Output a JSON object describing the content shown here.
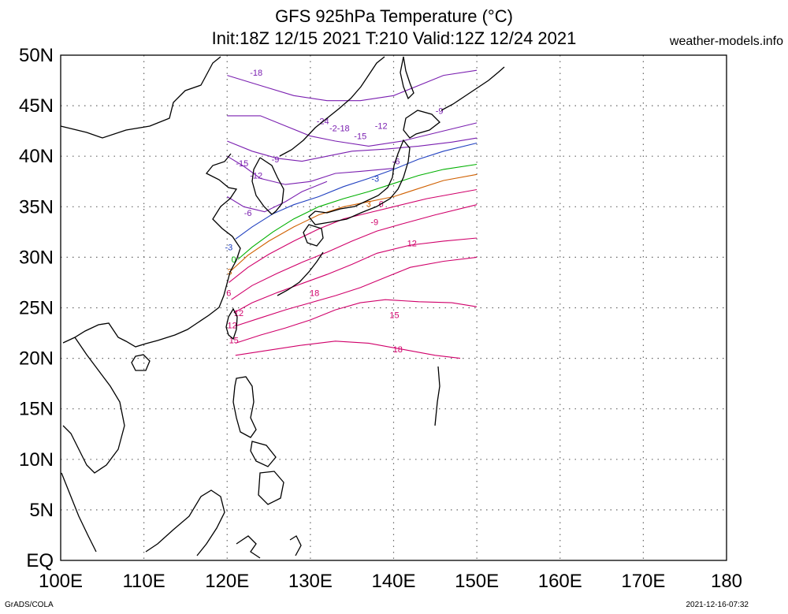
{
  "titles": {
    "line1": "GFS 925hPa Temperature (°C)",
    "line2": "Init:18Z 12/15 2021 T:210 Valid:12Z 12/24 2021",
    "site": "weather-models.info"
  },
  "footer": {
    "left": "GrADS/COLA",
    "right": "2021-12-16-07:32"
  },
  "axes": {
    "lon_labels": [
      "100E",
      "110E",
      "120E",
      "130E",
      "140E",
      "150E",
      "160E",
      "170E",
      "180"
    ],
    "lat_labels": [
      "EQ",
      "5N",
      "10N",
      "15N",
      "20N",
      "25N",
      "30N",
      "35N",
      "40N",
      "45N",
      "50N"
    ],
    "lon_range": [
      100,
      180
    ],
    "lat_range": [
      0,
      50
    ],
    "grid": "dotted"
  },
  "colors": {
    "coast": "#000000",
    "cold": "#7a1fb0",
    "minus3": "#2040c0",
    "zero": "#00b000",
    "plus3": "#d06000",
    "warm": "#d0006a"
  },
  "contour_labels": [
    {
      "text": "-18",
      "lon": 123.5,
      "lat": 48.3,
      "c": "cold"
    },
    {
      "text": "-24",
      "lon": 131.5,
      "lat": 43.5,
      "c": "cold"
    },
    {
      "text": "-2-18",
      "lon": 133.5,
      "lat": 42.8,
      "c": "cold"
    },
    {
      "text": "-15",
      "lon": 136.0,
      "lat": 42.0,
      "c": "cold"
    },
    {
      "text": "-12",
      "lon": 138.5,
      "lat": 43.0,
      "c": "cold"
    },
    {
      "text": "-9",
      "lon": 145.5,
      "lat": 44.5,
      "c": "cold"
    },
    {
      "text": "-9",
      "lon": 125.8,
      "lat": 39.7,
      "c": "cold"
    },
    {
      "text": "-15",
      "lon": 121.8,
      "lat": 39.3,
      "c": "cold"
    },
    {
      "text": "-12",
      "lon": 123.5,
      "lat": 38.1,
      "c": "cold"
    },
    {
      "text": "-6",
      "lon": 140.3,
      "lat": 39.5,
      "c": "cold"
    },
    {
      "text": "-6",
      "lon": 122.5,
      "lat": 34.4,
      "c": "cold"
    },
    {
      "text": "-3",
      "lon": 137.8,
      "lat": 37.8,
      "c": "minus3"
    },
    {
      "text": "-3",
      "lon": 120.2,
      "lat": 31.0,
      "c": "minus3"
    },
    {
      "text": "0",
      "lon": 120.8,
      "lat": 29.8,
      "c": "zero"
    },
    {
      "text": "3",
      "lon": 120.3,
      "lat": 28.6,
      "c": "plus3"
    },
    {
      "text": "3",
      "lon": 137.0,
      "lat": 35.3,
      "c": "plus3"
    },
    {
      "text": "6",
      "lon": 138.5,
      "lat": 35.3,
      "c": "warm"
    },
    {
      "text": "-9",
      "lon": 137.7,
      "lat": 33.5,
      "c": "warm"
    },
    {
      "text": "6",
      "lon": 120.2,
      "lat": 26.5,
      "c": "warm"
    },
    {
      "text": "12",
      "lon": 121.4,
      "lat": 24.5,
      "c": "warm"
    },
    {
      "text": "12",
      "lon": 142.2,
      "lat": 31.4,
      "c": "warm"
    },
    {
      "text": "12",
      "lon": 120.6,
      "lat": 23.3,
      "c": "warm"
    },
    {
      "text": "15",
      "lon": 120.8,
      "lat": 21.8,
      "c": "warm"
    },
    {
      "text": "18",
      "lon": 130.5,
      "lat": 26.5,
      "c": "warm"
    },
    {
      "text": "15",
      "lon": 140.1,
      "lat": 24.3,
      "c": "warm"
    },
    {
      "text": "18",
      "lon": 140.5,
      "lat": 20.9,
      "c": "warm"
    }
  ]
}
